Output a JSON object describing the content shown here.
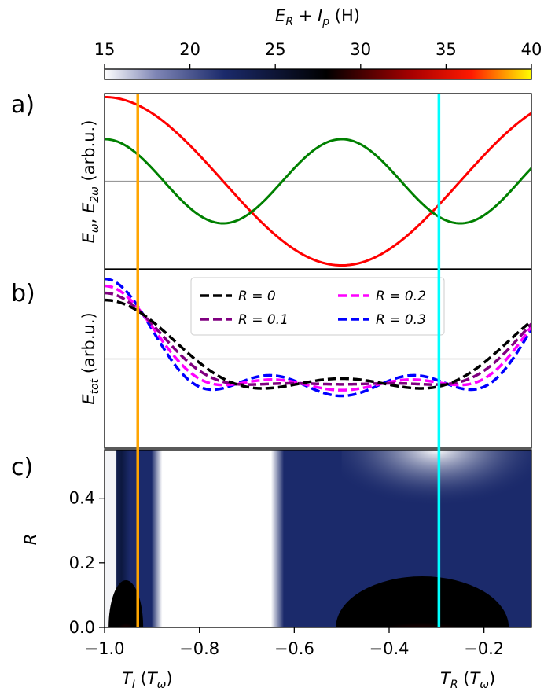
{
  "chart_data": [
    {
      "type": "colorbar",
      "title": "E_R + I_p (H)",
      "title_parts": {
        "e": "E",
        "e_sub": "R",
        "plus": " + ",
        "i": "I",
        "i_sub": "p",
        "unit": " (H)"
      },
      "range": [
        15,
        40
      ],
      "ticks": [
        "15",
        "20",
        "25",
        "30",
        "35",
        "40"
      ],
      "tick_values": [
        15,
        20,
        25,
        30,
        35,
        40
      ],
      "colormap": "flag-like: white-navy-black-red-yellow",
      "colormap_stops": [
        "#ffffff",
        "#1b2a6b",
        "#000000",
        "#c00000",
        "#ff2200",
        "#ffcc00",
        "#ffff00"
      ]
    },
    {
      "type": "line",
      "panel_label": "a)",
      "ylabel": "E_ω, E_2ω (arb.u.)",
      "ylabel_parts": {
        "e1": "E",
        "sub1": "ω",
        "comma": ", ",
        "e2": "E",
        "sub2": "2ω",
        "unit": " (arb.u.)"
      },
      "xlim": [
        -1.0,
        -0.1
      ],
      "ylim": [
        -1.25,
        1.25
      ],
      "zero_line": true,
      "series": [
        {
          "name": "E_ω",
          "color": "#ff0000",
          "amplitude": 1.2,
          "period": 1.0,
          "shift": 0.0
        },
        {
          "name": "E_2ω",
          "color": "#008000",
          "amplitude": 0.6,
          "period": 0.5,
          "shift": 0.0
        }
      ]
    },
    {
      "type": "line",
      "panel_label": "b)",
      "ylabel": "E_tot (arb.u.)",
      "ylabel_parts": {
        "e": "E",
        "sub": "tot",
        "unit": " (arb.u.)"
      },
      "xlim": [
        -1.0,
        -0.1
      ],
      "ylim": [
        -1.25,
        1.25
      ],
      "zero_line": true,
      "legend": "top-center",
      "series": [
        {
          "name": "R = 0",
          "legend_label": "R = 0",
          "R": 0.0,
          "color": "#000000",
          "style": "dashed"
        },
        {
          "name": "R = 0.1",
          "legend_label": "R = 0.1",
          "R": 0.1,
          "color": "#800080",
          "style": "dashed"
        },
        {
          "name": "R = 0.2",
          "legend_label": "R = 0.2",
          "R": 0.2,
          "color": "#ff00ff",
          "style": "dashed"
        },
        {
          "name": "R = 0.3",
          "legend_label": "R = 0.3",
          "R": 0.3,
          "color": "#0000ff",
          "style": "dashed"
        }
      ]
    },
    {
      "type": "heatmap",
      "panel_label": "c)",
      "ylabel": "R",
      "xlim": [
        -1.0,
        -0.1
      ],
      "ylim": [
        0.0,
        0.55
      ],
      "xticks": [
        -1.0,
        -0.8,
        -0.6,
        -0.4,
        -0.2
      ],
      "xtick_labels": [
        "−1.0",
        "−0.8",
        "−0.6",
        "−0.4",
        "−0.2"
      ],
      "yticks": [
        0.0,
        0.2,
        0.4
      ],
      "ytick_labels": [
        "0.0",
        "0.2",
        "0.4"
      ],
      "value_range": [
        15,
        40
      ]
    },
    {
      "type": "markers",
      "vertical_lines": [
        {
          "name": "T_I",
          "x": -0.93,
          "color": "#ffa500"
        },
        {
          "name": "T_R",
          "x": -0.295,
          "color": "#00ffff"
        }
      ],
      "bottom_labels": {
        "ti": {
          "main": "T",
          "sub": "I",
          "paren_open": " (",
          "t": "T",
          "t_sub": "ω",
          "paren_close": ")"
        },
        "tr": {
          "main": "T",
          "sub": "R",
          "paren_open": " (",
          "t": "T",
          "t_sub": "ω",
          "paren_close": ")"
        }
      }
    }
  ]
}
